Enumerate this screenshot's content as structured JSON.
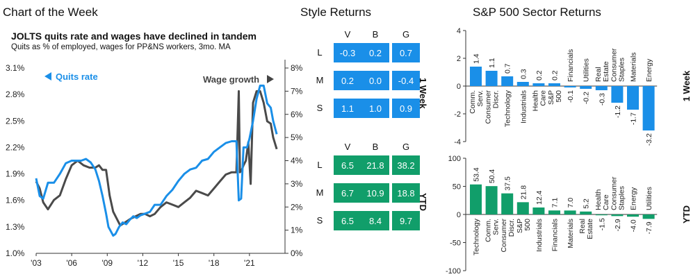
{
  "page": {
    "title": "Chart of the Week",
    "style_title": "Style Returns",
    "sector_title": "S&P 500 Sector Returns"
  },
  "chart_data": [
    {
      "type": "line",
      "title": "JOLTS quits rate and wages have declined in tandem",
      "subtitle": "Quits as % of employed, wages for PP&NS workers, 3mo. MA",
      "x_ticks": [
        "'03",
        "'06",
        "'09",
        "'12",
        "'15",
        "'18",
        "'21"
      ],
      "y_left_ticks": [
        "3.1%",
        "2.8%",
        "2.5%",
        "2.2%",
        "1.9%",
        "1.6%",
        "1.3%",
        "1.0%"
      ],
      "y_right_ticks": [
        "8%",
        "7%",
        "6%",
        "5%",
        "4%",
        "3%",
        "2%",
        "1%",
        "0%"
      ],
      "y_left_range": [
        1.0,
        3.1
      ],
      "y_right_range": [
        0,
        8
      ],
      "colors": {
        "quits": "#1a8fe8",
        "wages": "#4a4a4a"
      },
      "series": [
        {
          "name": "Quits rate",
          "axis": "left",
          "x": [
            2003.0,
            2003.3,
            2003.6,
            2004.0,
            2004.5,
            2005.0,
            2005.5,
            2006.0,
            2006.4,
            2006.8,
            2007.2,
            2007.6,
            2008.0,
            2008.3,
            2008.6,
            2008.9,
            2009.1,
            2009.3,
            2009.5,
            2009.7,
            2010.0,
            2010.3,
            2010.6,
            2010.9,
            2011.2,
            2011.5,
            2011.8,
            2012.2,
            2012.6,
            2013.0,
            2013.5,
            2014.0,
            2014.5,
            2015.0,
            2015.5,
            2016.0,
            2016.5,
            2017.0,
            2017.5,
            2018.0,
            2018.5,
            2019.0,
            2019.5,
            2019.9,
            2020.1,
            2020.3,
            2020.5,
            2020.8,
            2021.0,
            2021.3,
            2021.6,
            2021.9,
            2022.2,
            2022.5,
            2022.8,
            2023.0,
            2023.3
          ],
          "values": [
            1.85,
            1.65,
            1.62,
            1.8,
            1.8,
            1.9,
            2.02,
            2.05,
            2.05,
            2.05,
            2.07,
            2.03,
            1.95,
            1.82,
            1.65,
            1.45,
            1.3,
            1.25,
            1.2,
            1.22,
            1.3,
            1.35,
            1.33,
            1.38,
            1.42,
            1.4,
            1.43,
            1.45,
            1.47,
            1.55,
            1.55,
            1.65,
            1.72,
            1.82,
            1.9,
            1.95,
            1.97,
            2.05,
            2.07,
            2.15,
            2.2,
            2.25,
            2.27,
            2.27,
            1.6,
            1.62,
            2.2,
            2.2,
            2.3,
            2.5,
            2.75,
            2.9,
            2.9,
            2.7,
            2.65,
            2.5,
            2.35
          ]
        },
        {
          "name": "Wage growth",
          "axis": "right",
          "x": [
            2003.0,
            2003.3,
            2003.6,
            2004.0,
            2004.5,
            2005.0,
            2005.5,
            2006.0,
            2006.5,
            2007.0,
            2007.5,
            2008.0,
            2008.3,
            2008.6,
            2008.9,
            2009.2,
            2009.5,
            2009.8,
            2010.1,
            2010.4,
            2010.7,
            2011.0,
            2011.4,
            2011.8,
            2012.2,
            2012.6,
            2013.0,
            2013.5,
            2014.0,
            2014.5,
            2015.0,
            2015.5,
            2016.0,
            2016.5,
            2017.0,
            2017.5,
            2018.0,
            2018.5,
            2019.0,
            2019.5,
            2019.9,
            2020.1,
            2020.2,
            2020.35,
            2020.5,
            2020.7,
            2020.9,
            2021.1,
            2021.3,
            2021.6,
            2021.9,
            2022.2,
            2022.5,
            2022.8,
            2023.0,
            2023.3
          ],
          "values": [
            3.1,
            2.8,
            2.2,
            1.9,
            2.3,
            2.5,
            3.2,
            3.8,
            4.0,
            3.8,
            3.7,
            3.7,
            3.8,
            3.6,
            3.6,
            2.5,
            1.8,
            1.5,
            1.2,
            1.3,
            1.4,
            1.5,
            1.6,
            1.7,
            1.7,
            1.6,
            1.7,
            2.0,
            2.2,
            2.1,
            2.0,
            2.2,
            2.4,
            2.7,
            2.6,
            2.5,
            2.8,
            3.1,
            3.4,
            3.5,
            3.5,
            7.0,
            3.5,
            3.6,
            3.8,
            4.0,
            4.8,
            3.0,
            6.5,
            7.0,
            7.0,
            6.5,
            5.7,
            5.6,
            5.0,
            4.5
          ]
        }
      ],
      "annotations": [
        "Quits rate",
        "Wage growth"
      ]
    },
    {
      "type": "heatmap",
      "columns": [
        "V",
        "B",
        "G"
      ],
      "rows": [
        "L",
        "M",
        "S"
      ],
      "panels": [
        {
          "label": "1 Week",
          "color": "#1a8fe8",
          "values": [
            [
              "-0.3",
              "0.2",
              "0.7"
            ],
            [
              "0.2",
              "0.0",
              "-0.4"
            ],
            [
              "1.1",
              "1.0",
              "0.9"
            ]
          ]
        },
        {
          "label": "YTD",
          "color": "#119e6a",
          "values": [
            [
              "6.5",
              "21.8",
              "38.2"
            ],
            [
              "6.7",
              "10.9",
              "18.8"
            ],
            [
              "6.5",
              "8.4",
              "9.7"
            ]
          ]
        }
      ]
    },
    {
      "type": "bar",
      "label": "1 Week",
      "color": "#1a8fe8",
      "categories": [
        "Comm. Serv.",
        "Consumer Discr.",
        "Technology",
        "Industrials",
        "Health Care",
        "S&P 500",
        "Financials",
        "Utilities",
        "Real Estate",
        "Consumer Staples",
        "Materials",
        "Energy"
      ],
      "values": [
        1.4,
        1.1,
        0.7,
        0.3,
        0.2,
        0.2,
        -0.1,
        -0.2,
        -0.3,
        -1.2,
        -1.7,
        -3.2
      ],
      "value_labels": [
        "1.4",
        "1.1",
        "0.7",
        "0.3",
        "0.2",
        "0.2",
        "-0.1",
        "-0.2",
        "-0.3",
        "-1.2",
        "-1.7",
        "-3.2"
      ],
      "y_ticks": [
        "4",
        "2",
        "0",
        "-2",
        "-4"
      ],
      "ylim": [
        -4,
        4
      ]
    },
    {
      "type": "bar",
      "label": "YTD",
      "color": "#119e6a",
      "categories": [
        "Technology",
        "Comm. Serv.",
        "Consumer Discr.",
        "S&P 500",
        "Industrials",
        "Financials",
        "Materials",
        "Real Estate",
        "Health Care",
        "Consumer Staples",
        "Energy",
        "Utilities"
      ],
      "values": [
        53.4,
        50.4,
        37.5,
        21.8,
        12.4,
        7.1,
        7.0,
        5.2,
        -1.5,
        -2.9,
        -4.0,
        -7.9
      ],
      "value_labels": [
        "53.4",
        "50.4",
        "37.5",
        "21.8",
        "12.4",
        "7.1",
        "7.0",
        "5.2",
        "-1.5",
        "-2.9",
        "-4.0",
        "-7.9"
      ],
      "y_ticks": [
        "100",
        "50",
        "0",
        "-50",
        "-100"
      ],
      "ylim": [
        -100,
        100
      ]
    }
  ]
}
